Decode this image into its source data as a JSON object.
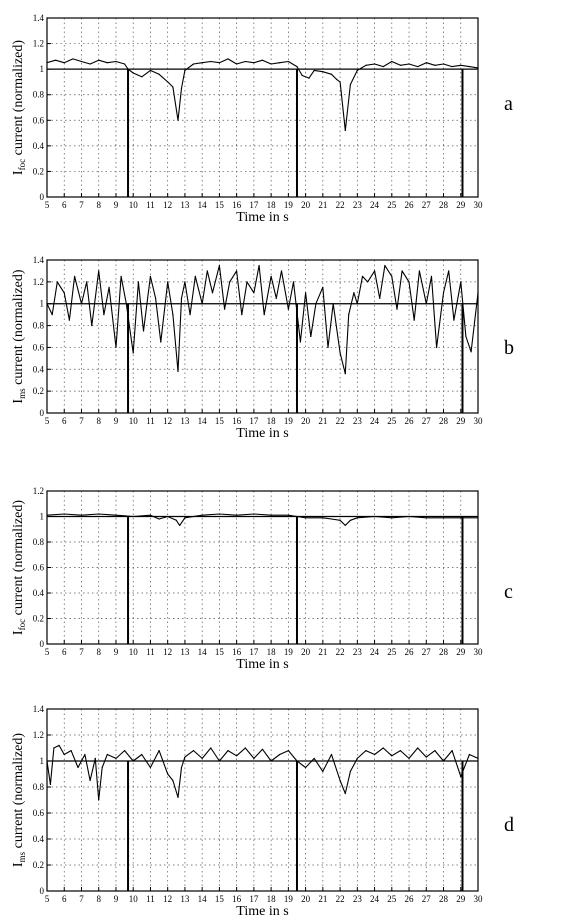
{
  "figure": {
    "panels": [
      {
        "letter": "a",
        "ylabel_main": "I",
        "ylabel_sub": "foc",
        "ylabel_rest": " current (normalized)",
        "xlabel": "Time in s"
      },
      {
        "letter": "b",
        "ylabel_main": "I",
        "ylabel_sub": "ms",
        "ylabel_rest": " current (normalized)",
        "xlabel": "Time in s"
      },
      {
        "letter": "c",
        "ylabel_main": "I",
        "ylabel_sub": "foc",
        "ylabel_rest": " current (normalized)",
        "xlabel": "Time in s"
      },
      {
        "letter": "d",
        "ylabel_main": "I",
        "ylabel_sub": "ms",
        "ylabel_rest": " current (normalized)",
        "xlabel": "Time in s"
      }
    ]
  },
  "chart_data": [
    {
      "type": "line",
      "panel": "a",
      "xlabel": "Time in s",
      "ylabel": "I_foc current (normalized)",
      "xlim": [
        5,
        30
      ],
      "ylim": [
        0,
        1.4
      ],
      "xticks": [
        5,
        6,
        7,
        8,
        9,
        10,
        11,
        12,
        13,
        14,
        15,
        16,
        17,
        18,
        19,
        20,
        21,
        22,
        23,
        24,
        25,
        26,
        27,
        28,
        29,
        30
      ],
      "yticks": [
        0,
        0.2,
        0.4,
        0.6,
        0.8,
        1,
        1.2,
        1.4
      ],
      "ytick_labels": [
        "0",
        "0.2",
        "0.4",
        "0.6",
        "0.8",
        "1",
        "1.2",
        "1.4"
      ],
      "grid": true,
      "reference_line": 1.0,
      "drops": [
        9.7,
        19.5,
        29.1
      ],
      "series": [
        {
          "x": [
            5,
            5.5,
            6,
            6.5,
            7,
            7.5,
            8,
            8.5,
            9,
            9.5,
            9.7,
            10,
            10.5,
            11,
            11.5,
            12,
            12.3,
            12.6,
            12.8,
            13,
            13.5,
            14,
            14.5,
            15,
            15.5,
            16,
            16.5,
            17,
            17.5,
            18,
            18.5,
            19,
            19.5,
            19.8,
            20.2,
            20.5,
            21,
            21.5,
            21.8,
            22,
            22.3,
            22.6,
            23,
            23.5,
            24,
            24.5,
            25,
            25.5,
            26,
            26.5,
            27,
            27.5,
            28,
            28.5,
            29,
            29.5,
            30
          ],
          "values": [
            1.05,
            1.07,
            1.05,
            1.08,
            1.06,
            1.04,
            1.07,
            1.05,
            1.06,
            1.04,
            1.0,
            0.97,
            0.94,
            0.99,
            0.96,
            0.9,
            0.86,
            0.6,
            0.85,
            0.99,
            1.04,
            1.05,
            1.06,
            1.05,
            1.08,
            1.04,
            1.06,
            1.05,
            1.07,
            1.04,
            1.05,
            1.06,
            1.02,
            0.95,
            0.93,
            0.99,
            0.98,
            0.96,
            0.92,
            0.9,
            0.52,
            0.88,
            0.99,
            1.03,
            1.04,
            1.02,
            1.06,
            1.03,
            1.04,
            1.02,
            1.05,
            1.03,
            1.04,
            1.02,
            1.03,
            1.02,
            1.01
          ]
        }
      ]
    },
    {
      "type": "line",
      "panel": "b",
      "xlabel": "Time in s",
      "ylabel": "I_ms current (normalized)",
      "xlim": [
        5,
        30
      ],
      "ylim": [
        0,
        1.4
      ],
      "xticks": [
        5,
        6,
        7,
        8,
        9,
        10,
        11,
        12,
        13,
        14,
        15,
        16,
        17,
        18,
        19,
        20,
        21,
        22,
        23,
        24,
        25,
        26,
        27,
        28,
        29,
        30
      ],
      "yticks": [
        0,
        0.2,
        0.4,
        0.6,
        0.8,
        1,
        1.2,
        1.4
      ],
      "ytick_labels": [
        "0",
        "0.2",
        "0.4",
        "0.6",
        "0.8",
        "1",
        "1.2",
        "1.4"
      ],
      "grid": true,
      "reference_line": 1.0,
      "drops": [
        9.7,
        19.5,
        29.1
      ],
      "series": [
        {
          "x": [
            5,
            5.3,
            5.6,
            6,
            6.3,
            6.6,
            7,
            7.3,
            7.6,
            8,
            8.3,
            8.6,
            9,
            9.3,
            9.6,
            10,
            10.3,
            10.6,
            11,
            11.3,
            11.6,
            12,
            12.3,
            12.6,
            12.8,
            13,
            13.3,
            13.6,
            14,
            14.3,
            14.6,
            15,
            15.3,
            15.6,
            16,
            16.3,
            16.6,
            17,
            17.3,
            17.6,
            18,
            18.3,
            18.6,
            19,
            19.3,
            19.7,
            20,
            20.3,
            20.6,
            21,
            21.3,
            21.6,
            22,
            22.3,
            22.5,
            22.8,
            23,
            23.3,
            23.6,
            24,
            24.3,
            24.6,
            25,
            25.3,
            25.6,
            26,
            26.3,
            26.6,
            27,
            27.3,
            27.6,
            28,
            28.3,
            28.6,
            29,
            29.3,
            29.6,
            30
          ],
          "values": [
            1.0,
            0.9,
            1.2,
            1.1,
            0.85,
            1.25,
            1.0,
            1.2,
            0.8,
            1.3,
            0.9,
            1.15,
            0.6,
            1.25,
            1.0,
            0.55,
            1.2,
            0.75,
            1.25,
            1.05,
            0.65,
            1.2,
            0.9,
            0.38,
            1.05,
            1.2,
            0.9,
            1.25,
            1.0,
            1.3,
            1.1,
            1.35,
            0.95,
            1.2,
            1.3,
            0.9,
            1.2,
            1.1,
            1.35,
            0.9,
            1.25,
            1.05,
            1.3,
            0.95,
            1.2,
            0.65,
            1.1,
            0.7,
            1.0,
            1.15,
            0.6,
            1.0,
            0.55,
            0.36,
            0.9,
            1.1,
            1.0,
            1.25,
            1.2,
            1.3,
            1.05,
            1.35,
            1.25,
            0.95,
            1.3,
            1.2,
            0.85,
            1.3,
            1.0,
            1.25,
            0.6,
            1.1,
            1.3,
            0.85,
            1.2,
            0.7,
            0.56,
            1.1
          ]
        }
      ]
    },
    {
      "type": "line",
      "panel": "c",
      "xlabel": "Time in s",
      "ylabel": "I_foc current (normalized)",
      "xlim": [
        5,
        30
      ],
      "ylim": [
        0,
        1.2
      ],
      "xticks": [
        5,
        6,
        7,
        8,
        9,
        10,
        11,
        12,
        13,
        14,
        15,
        16,
        17,
        18,
        19,
        20,
        21,
        22,
        23,
        24,
        25,
        26,
        27,
        28,
        29,
        30
      ],
      "yticks": [
        0,
        0.2,
        0.4,
        0.6,
        0.8,
        1,
        1.2
      ],
      "ytick_labels": [
        "0",
        "0.2",
        "0.4",
        "0.6",
        "0.8",
        "1",
        "1.2"
      ],
      "grid": true,
      "reference_line": 1.0,
      "drops": [
        9.7,
        19.5,
        29.1
      ],
      "series": [
        {
          "x": [
            5,
            6,
            7,
            8,
            9,
            10,
            11,
            11.5,
            12,
            12.5,
            12.7,
            13,
            14,
            15,
            16,
            17,
            18,
            19,
            19.5,
            20,
            21,
            21.5,
            22,
            22.3,
            22.6,
            23,
            24,
            25,
            26,
            27,
            28,
            29,
            30
          ],
          "values": [
            1.01,
            1.02,
            1.01,
            1.02,
            1.01,
            1.0,
            1.01,
            0.98,
            1.0,
            0.97,
            0.93,
            0.99,
            1.01,
            1.02,
            1.01,
            1.02,
            1.01,
            1.01,
            1.0,
            0.99,
            0.99,
            0.98,
            0.97,
            0.93,
            0.97,
            0.99,
            1.0,
            0.99,
            1.0,
            0.99,
            0.99,
            0.99,
            0.99
          ]
        }
      ]
    },
    {
      "type": "line",
      "panel": "d",
      "xlabel": "Time in s",
      "ylabel": "I_ms current (normalized)",
      "xlim": [
        5,
        30
      ],
      "ylim": [
        0,
        1.4
      ],
      "xticks": [
        5,
        6,
        7,
        8,
        9,
        10,
        11,
        12,
        13,
        14,
        15,
        16,
        17,
        18,
        19,
        20,
        21,
        22,
        23,
        24,
        25,
        26,
        27,
        28,
        29,
        30
      ],
      "yticks": [
        0,
        0.2,
        0.4,
        0.6,
        0.8,
        1,
        1.2,
        1.4
      ],
      "ytick_labels": [
        "0",
        "0.2",
        "0.4",
        "0.6",
        "0.8",
        "1",
        "1.2",
        "1.4"
      ],
      "grid": true,
      "reference_line": 1.0,
      "drops": [
        9.7,
        19.5,
        29.1
      ],
      "series": [
        {
          "x": [
            5,
            5.2,
            5.4,
            5.7,
            6,
            6.4,
            6.8,
            7.2,
            7.5,
            7.8,
            8,
            8.2,
            8.5,
            9,
            9.5,
            10,
            10.5,
            11,
            11.5,
            12,
            12.3,
            12.6,
            12.8,
            13,
            13.5,
            14,
            14.5,
            15,
            15.5,
            16,
            16.5,
            17,
            17.5,
            18,
            18.5,
            19,
            19.5,
            20,
            20.5,
            21,
            21.5,
            22,
            22.3,
            22.6,
            23,
            23.5,
            24,
            24.5,
            25,
            25.5,
            26,
            26.5,
            27,
            27.5,
            28,
            28.5,
            29,
            29.5,
            30
          ],
          "values": [
            1.0,
            0.82,
            1.1,
            1.12,
            1.05,
            1.08,
            0.95,
            1.05,
            0.85,
            1.02,
            0.7,
            0.95,
            1.05,
            1.02,
            1.08,
            1.0,
            1.05,
            0.95,
            1.08,
            0.9,
            0.85,
            0.72,
            0.95,
            1.03,
            1.08,
            1.02,
            1.1,
            1.0,
            1.08,
            1.04,
            1.1,
            1.02,
            1.09,
            1.0,
            1.05,
            1.08,
            1.0,
            0.95,
            1.02,
            0.92,
            1.05,
            0.85,
            0.75,
            0.92,
            1.02,
            1.08,
            1.05,
            1.1,
            1.04,
            1.08,
            1.02,
            1.1,
            1.03,
            1.08,
            1.0,
            1.08,
            0.88,
            1.05,
            1.02
          ]
        }
      ]
    }
  ]
}
